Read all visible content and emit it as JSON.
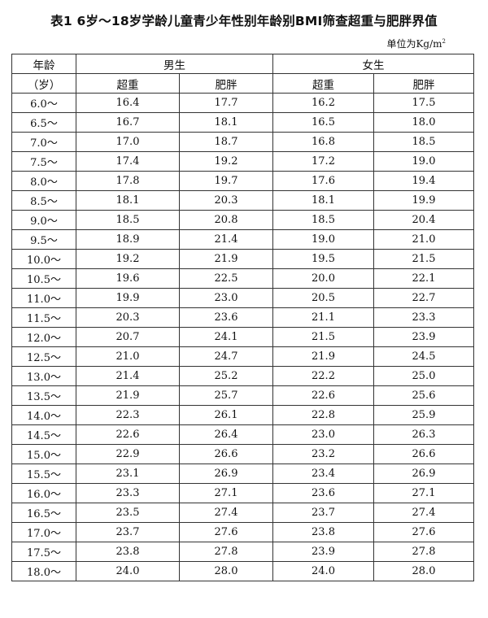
{
  "title": "表1 6岁～18岁学龄儿童青少年性别年龄别BMI筛查超重与肥胖界值",
  "unit": "单位为Kg/m",
  "unit_sup": "2",
  "header": {
    "age_line1": "年龄",
    "age_line2": "（岁）",
    "male": "男生",
    "female": "女生",
    "overweight": "超重",
    "obese": "肥胖"
  },
  "rows": [
    [
      "6.0～",
      "16.4",
      "17.7",
      "16.2",
      "17.5"
    ],
    [
      "6.5～",
      "16.7",
      "18.1",
      "16.5",
      "18.0"
    ],
    [
      "7.0～",
      "17.0",
      "18.7",
      "16.8",
      "18.5"
    ],
    [
      "7.5～",
      "17.4",
      "19.2",
      "17.2",
      "19.0"
    ],
    [
      "8.0～",
      "17.8",
      "19.7",
      "17.6",
      "19.4"
    ],
    [
      "8.5～",
      "18.1",
      "20.3",
      "18.1",
      "19.9"
    ],
    [
      "9.0～",
      "18.5",
      "20.8",
      "18.5",
      "20.4"
    ],
    [
      "9.5～",
      "18.9",
      "21.4",
      "19.0",
      "21.0"
    ],
    [
      "10.0～",
      "19.2",
      "21.9",
      "19.5",
      "21.5"
    ],
    [
      "10.5～",
      "19.6",
      "22.5",
      "20.0",
      "22.1"
    ],
    [
      "11.0～",
      "19.9",
      "23.0",
      "20.5",
      "22.7"
    ],
    [
      "11.5～",
      "20.3",
      "23.6",
      "21.1",
      "23.3"
    ],
    [
      "12.0～",
      "20.7",
      "24.1",
      "21.5",
      "23.9"
    ],
    [
      "12.5～",
      "21.0",
      "24.7",
      "21.9",
      "24.5"
    ],
    [
      "13.0～",
      "21.4",
      "25.2",
      "22.2",
      "25.0"
    ],
    [
      "13.5～",
      "21.9",
      "25.7",
      "22.6",
      "25.6"
    ],
    [
      "14.0～",
      "22.3",
      "26.1",
      "22.8",
      "25.9"
    ],
    [
      "14.5～",
      "22.6",
      "26.4",
      "23.0",
      "26.3"
    ],
    [
      "15.0～",
      "22.9",
      "26.6",
      "23.2",
      "26.6"
    ],
    [
      "15.5～",
      "23.1",
      "26.9",
      "23.4",
      "26.9"
    ],
    [
      "16.0～",
      "23.3",
      "27.1",
      "23.6",
      "27.1"
    ],
    [
      "16.5～",
      "23.5",
      "27.4",
      "23.7",
      "27.4"
    ],
    [
      "17.0～",
      "23.7",
      "27.6",
      "23.8",
      "27.6"
    ],
    [
      "17.5～",
      "23.8",
      "27.8",
      "23.9",
      "27.8"
    ],
    [
      "18.0～",
      "24.0",
      "28.0",
      "24.0",
      "28.0"
    ]
  ]
}
